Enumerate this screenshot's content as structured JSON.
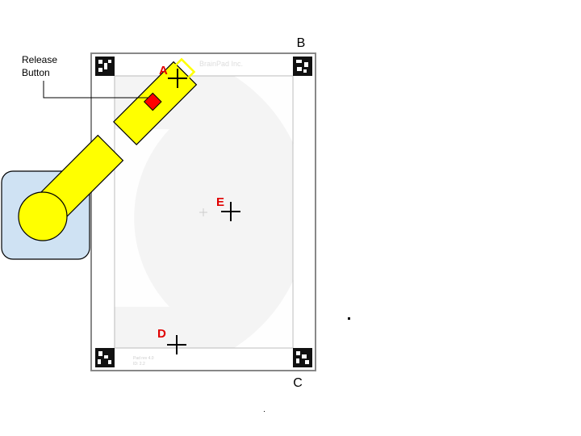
{
  "callout": {
    "release_line1": "Release",
    "release_line2": "Button"
  },
  "corner_labels": {
    "b": "B",
    "c": "C"
  },
  "points": {
    "a": "A",
    "d": "D",
    "e": "E"
  },
  "pad": {
    "brand": "BrainPad Inc.",
    "footer_line1": "Pad rev 4.0",
    "footer_line2": "ID: 2.2"
  },
  "colors": {
    "arm_fill": "#ffff00",
    "base_fill": "#cfe2f3",
    "release_button": "#ff0000",
    "point_label": "#e00000",
    "target_outline": "#ffff00"
  }
}
